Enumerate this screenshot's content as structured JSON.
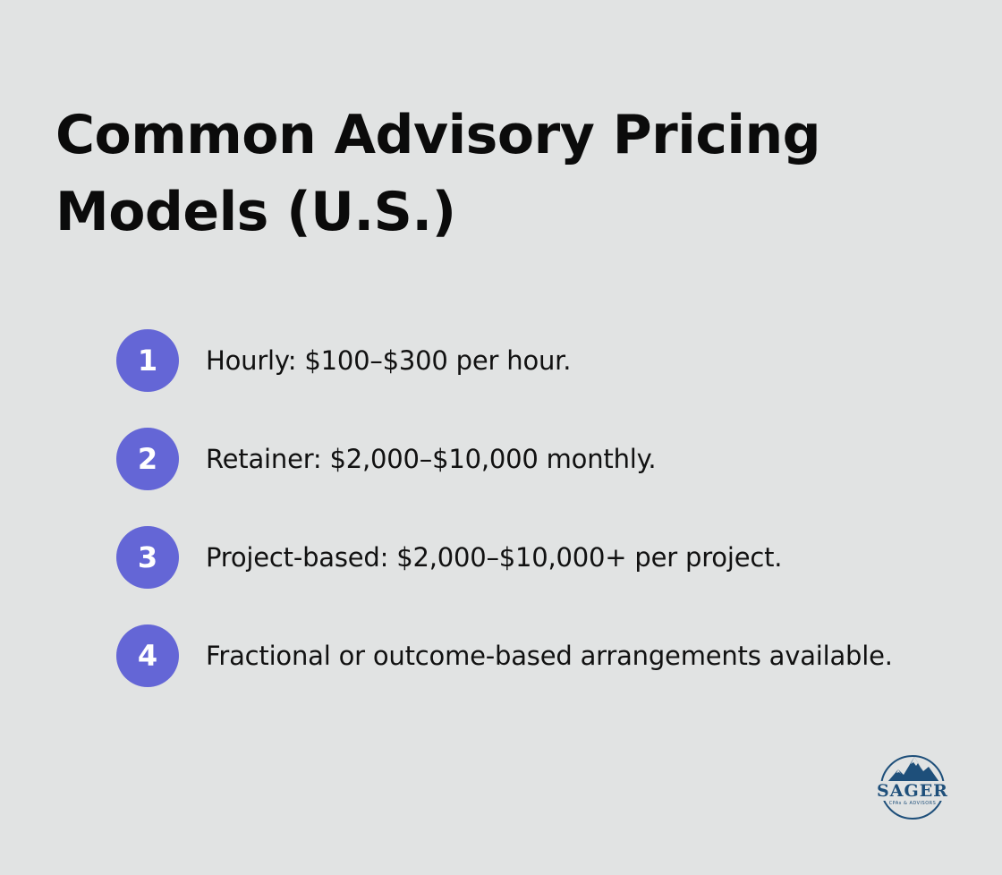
{
  "title": "Common Advisory Pricing Models (U.S.)",
  "items": [
    {
      "number": "1",
      "text": "Hourly: $100–$300 per hour."
    },
    {
      "number": "2",
      "text": "Retainer: $2,000–$10,000 monthly."
    },
    {
      "number": "3",
      "text": "Project-based: $2,000–$10,000+ per project."
    },
    {
      "number": "4",
      "text": "Fractional or outcome-based arrangements available."
    }
  ],
  "logo": {
    "name": "SAGER",
    "tagline": "CPAs & ADVISORS",
    "icon": "mountain-logo-icon",
    "color": "#1e4f7a"
  },
  "colors": {
    "background": "#e1e3e3",
    "accent": "#6466d6",
    "text": "#111111"
  }
}
